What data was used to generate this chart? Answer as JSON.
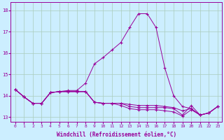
{
  "xlabel": "Windchill (Refroidissement éolien,°C)",
  "background_color": "#cceeff",
  "grid_color": "#aaccbb",
  "line_color": "#990099",
  "xlim": [
    -0.5,
    23.5
  ],
  "ylim": [
    12.8,
    18.4
  ],
  "yticks": [
    13,
    14,
    15,
    16,
    17,
    18
  ],
  "xticks": [
    0,
    1,
    2,
    3,
    4,
    5,
    6,
    7,
    8,
    9,
    10,
    11,
    12,
    13,
    14,
    15,
    16,
    17,
    18,
    19,
    20,
    21,
    22,
    23
  ],
  "series1_x": [
    0,
    1,
    2,
    3,
    4,
    5,
    6,
    7,
    8,
    9,
    10,
    11,
    12,
    13,
    14,
    15,
    16,
    17,
    18,
    19,
    20,
    21,
    22,
    23
  ],
  "series1_y": [
    14.3,
    13.95,
    13.65,
    13.65,
    14.15,
    14.2,
    14.25,
    14.25,
    14.6,
    15.5,
    15.8,
    16.15,
    16.5,
    17.2,
    17.85,
    17.85,
    17.2,
    15.3,
    14.0,
    13.5,
    13.4,
    13.1,
    13.2,
    13.5
  ],
  "series2_x": [
    0,
    1,
    2,
    3,
    4,
    5,
    6,
    7,
    8,
    9,
    10,
    11,
    12,
    13,
    14,
    15,
    16,
    17,
    18,
    19,
    20,
    21,
    22,
    23
  ],
  "series2_y": [
    14.3,
    13.95,
    13.65,
    13.65,
    14.15,
    14.2,
    14.2,
    14.2,
    14.2,
    13.7,
    13.65,
    13.65,
    13.65,
    13.6,
    13.55,
    13.55,
    13.55,
    13.5,
    13.45,
    13.3,
    13.4,
    13.1,
    13.2,
    13.5
  ],
  "series3_x": [
    0,
    1,
    2,
    3,
    4,
    5,
    6,
    7,
    8,
    9,
    10,
    11,
    12,
    13,
    14,
    15,
    16,
    17,
    18,
    19,
    20,
    21,
    22,
    23
  ],
  "series3_y": [
    14.3,
    13.95,
    13.65,
    13.65,
    14.15,
    14.2,
    14.2,
    14.2,
    14.2,
    13.7,
    13.65,
    13.65,
    13.65,
    13.5,
    13.45,
    13.45,
    13.45,
    13.45,
    13.4,
    13.1,
    13.55,
    13.1,
    13.2,
    13.5
  ],
  "series4_x": [
    0,
    1,
    2,
    3,
    4,
    5,
    6,
    7,
    8,
    9,
    10,
    11,
    12,
    13,
    14,
    15,
    16,
    17,
    18,
    19,
    20,
    21,
    22,
    23
  ],
  "series4_y": [
    14.3,
    13.95,
    13.65,
    13.65,
    14.15,
    14.2,
    14.2,
    14.2,
    14.2,
    13.7,
    13.65,
    13.65,
    13.55,
    13.4,
    13.35,
    13.35,
    13.35,
    13.3,
    13.25,
    13.05,
    13.35,
    13.1,
    13.2,
    13.5
  ]
}
